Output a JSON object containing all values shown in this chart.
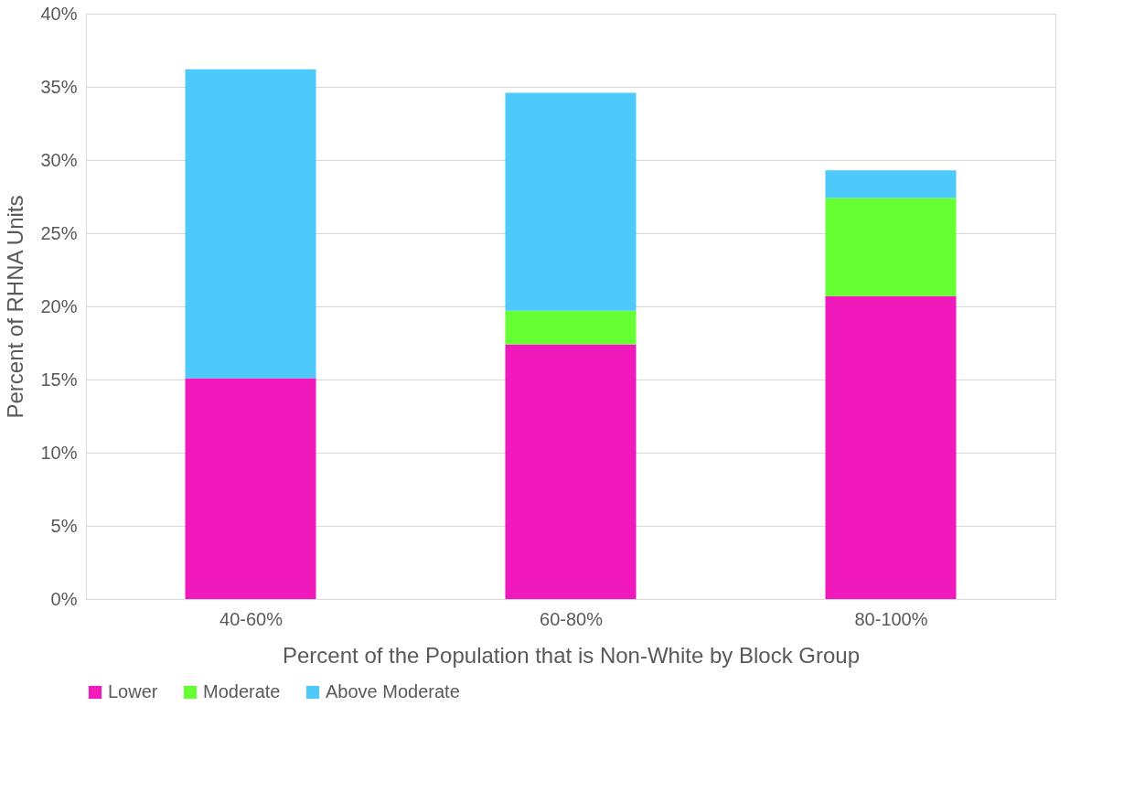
{
  "chart_data": {
    "type": "bar",
    "stacked": true,
    "xlabel": "Percent of the Population that is Non-White by Block Group",
    "ylabel": "Percent of RHNA Units",
    "categories": [
      "40-60%",
      "60-80%",
      "80-100%"
    ],
    "series": [
      {
        "name": "Lower",
        "color": "#f01abc",
        "values": [
          15.1,
          17.4,
          20.7
        ]
      },
      {
        "name": "Moderate",
        "color": "#66ff33",
        "values": [
          0,
          2.3,
          6.7
        ]
      },
      {
        "name": "Above Moderate",
        "color": "#4dc9fb",
        "values": [
          21.1,
          14.9,
          1.9
        ]
      }
    ],
    "ylim": [
      0,
      40
    ],
    "yticks": [
      {
        "value": 0,
        "label": "0%"
      },
      {
        "value": 5,
        "label": "5%"
      },
      {
        "value": 10,
        "label": "10%"
      },
      {
        "value": 15,
        "label": "15%"
      },
      {
        "value": 20,
        "label": "20%"
      },
      {
        "value": 25,
        "label": "25%"
      },
      {
        "value": 30,
        "label": "30%"
      },
      {
        "value": 35,
        "label": "35%"
      },
      {
        "value": 40,
        "label": "40%"
      }
    ],
    "grid": "y",
    "legend": "bottom"
  }
}
